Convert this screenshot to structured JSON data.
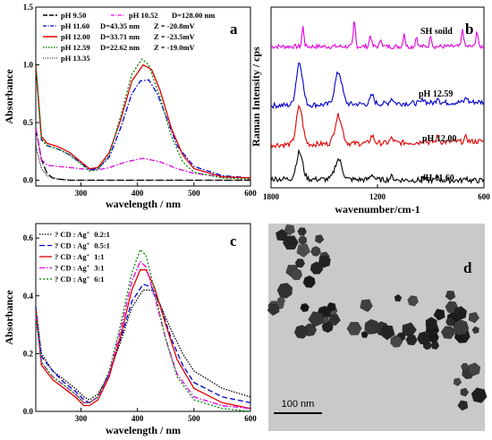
{
  "panels": {
    "a": {
      "label": "a",
      "xlabel": "wavelength / nm",
      "ylabel": "Absorbance",
      "legend": [
        {
          "ph": "pH 9.50",
          "d": "",
          "z": ""
        },
        {
          "ph": "pH 10.52",
          "d": "D=128.00 nm",
          "z": ""
        },
        {
          "ph": "pH 11.60",
          "d": "D=43.35 nm",
          "z": "Z = -20.8mV"
        },
        {
          "ph": "pH 12.00",
          "d": "D=33.71 nm",
          "z": "Z = -23.5mV"
        },
        {
          "ph": "pH 12.59",
          "d": "D=22.62 nm",
          "z": "Z = -19.0mV"
        },
        {
          "ph": "pH 13.35",
          "d": "",
          "z": ""
        }
      ]
    },
    "b": {
      "label": "b",
      "xlabel": "wavenumber/cm-1",
      "ylabel": "Raman Intensity / cps",
      "trace_labels": [
        "SH soild",
        "pH 12.59",
        "pH 12.00",
        "pH 11.60"
      ]
    },
    "c": {
      "label": "c",
      "xlabel": "wavelength / nm",
      "ylabel": "Absorbance",
      "legend": [
        {
          "mark": "?",
          "text": "CD : Ag",
          "sup": "+",
          "ratio": "0.2:1"
        },
        {
          "mark": "?",
          "text": "CD : Ag",
          "sup": "+",
          "ratio": "0.5:1"
        },
        {
          "mark": "?",
          "text": "CD : Ag",
          "sup": "+",
          "ratio": "1:1"
        },
        {
          "mark": "?",
          "text": "CD : Ag",
          "sup": "+",
          "ratio": "3:1"
        },
        {
          "mark": "?",
          "text": "CD : Ag",
          "sup": "+",
          "ratio": "6:1"
        }
      ]
    },
    "d": {
      "label": "d",
      "scalebar": "100 nm"
    }
  },
  "chart_data": [
    {
      "panel": "a",
      "type": "line",
      "xlim": [
        220,
        600
      ],
      "ylim": [
        -0.05,
        1.5
      ],
      "xticks": [
        "300",
        "400",
        "500",
        "600"
      ],
      "yticks": [
        "0.0",
        "0.5",
        "1.0",
        "1.5"
      ],
      "series": [
        {
          "name": "pH 9.50",
          "color": "#000000",
          "dash": "8,3",
          "x": [
            220,
            230,
            240,
            250,
            260,
            280,
            300,
            350,
            400,
            450,
            500,
            550,
            600
          ],
          "y": [
            0.45,
            0.18,
            0.06,
            0.02,
            0.01,
            0.0,
            0.0,
            0.0,
            0.0,
            0.0,
            0.0,
            0.0,
            0.0
          ]
        },
        {
          "name": "pH 10.52",
          "color": "#e000e0",
          "dash": "6,2,1.5,2",
          "x": [
            220,
            230,
            240,
            260,
            280,
            300,
            315,
            330,
            350,
            380,
            410,
            440,
            470,
            500,
            550,
            600
          ],
          "y": [
            0.45,
            0.18,
            0.13,
            0.12,
            0.11,
            0.1,
            0.09,
            0.09,
            0.11,
            0.16,
            0.19,
            0.16,
            0.1,
            0.06,
            0.03,
            0.02
          ]
        },
        {
          "name": "pH 11.60",
          "color": "#0000cc",
          "dash": "6,2,1.5,2",
          "x": [
            220,
            230,
            240,
            260,
            280,
            300,
            315,
            330,
            350,
            370,
            390,
            405,
            420,
            435,
            450,
            470,
            500,
            550,
            600
          ],
          "y": [
            1.0,
            0.35,
            0.3,
            0.27,
            0.22,
            0.15,
            0.09,
            0.1,
            0.2,
            0.45,
            0.75,
            0.86,
            0.87,
            0.75,
            0.56,
            0.3,
            0.12,
            0.04,
            0.02
          ]
        },
        {
          "name": "pH 12.00",
          "color": "#e00000",
          "dash": "",
          "x": [
            220,
            230,
            240,
            260,
            280,
            300,
            315,
            330,
            350,
            370,
            390,
            410,
            425,
            440,
            460,
            480,
            500,
            550,
            600
          ],
          "y": [
            1.0,
            0.38,
            0.32,
            0.29,
            0.24,
            0.16,
            0.1,
            0.11,
            0.24,
            0.52,
            0.86,
            1.0,
            0.96,
            0.78,
            0.45,
            0.22,
            0.1,
            0.03,
            0.02
          ]
        },
        {
          "name": "pH 12.59",
          "color": "#008800",
          "dash": "2,2",
          "x": [
            220,
            230,
            240,
            260,
            280,
            300,
            315,
            330,
            350,
            370,
            390,
            408,
            420,
            440,
            460,
            480,
            500,
            550,
            600
          ],
          "y": [
            1.0,
            0.36,
            0.3,
            0.27,
            0.22,
            0.14,
            0.08,
            0.09,
            0.22,
            0.55,
            0.92,
            1.05,
            1.0,
            0.72,
            0.38,
            0.16,
            0.07,
            0.02,
            0.01
          ]
        },
        {
          "name": "pH 13.35",
          "color": "#000000",
          "dash": "1,1.5",
          "x": [
            220,
            230,
            240,
            250,
            260,
            280,
            300,
            350,
            400,
            450,
            500,
            550,
            600
          ],
          "y": [
            0.3,
            0.1,
            0.04,
            0.02,
            0.01,
            0.0,
            0.0,
            0.0,
            0.0,
            0.0,
            0.0,
            0.0,
            0.0
          ]
        }
      ]
    },
    {
      "panel": "b",
      "type": "line",
      "xlim": [
        1800,
        600
      ],
      "xticks": [
        "1800",
        "1200",
        "600"
      ],
      "series": [
        {
          "name": "SH soild",
          "color": "#e000e0",
          "offset": 3.0
        },
        {
          "name": "pH 12.59",
          "color": "#0000cc",
          "offset": 2.0
        },
        {
          "name": "pH 12.00",
          "color": "#e00000",
          "offset": 1.0
        },
        {
          "name": "pH 11.60",
          "color": "#000000",
          "offset": 0.0
        }
      ]
    },
    {
      "panel": "c",
      "type": "line",
      "xlim": [
        220,
        600
      ],
      "ylim": [
        0.0,
        0.65
      ],
      "xticks": [
        "300",
        "400",
        "500",
        "600"
      ],
      "yticks": [
        "0.0",
        "0.2",
        "0.4",
        "0.6"
      ],
      "series": [
        {
          "name": "CD : Ag+ 0.2:1",
          "color": "#000000",
          "dash": "1.5,1.5",
          "x": [
            220,
            230,
            250,
            270,
            290,
            305,
            315,
            330,
            350,
            370,
            390,
            410,
            425,
            440,
            460,
            480,
            500,
            550,
            600
          ],
          "y": [
            0.36,
            0.2,
            0.14,
            0.11,
            0.08,
            0.05,
            0.04,
            0.06,
            0.13,
            0.24,
            0.36,
            0.42,
            0.42,
            0.37,
            0.28,
            0.2,
            0.14,
            0.08,
            0.05
          ]
        },
        {
          "name": "CD : Ag+ 0.5:1",
          "color": "#0000cc",
          "dash": "6,3",
          "x": [
            220,
            230,
            250,
            270,
            290,
            305,
            315,
            330,
            350,
            370,
            390,
            410,
            425,
            440,
            460,
            480,
            500,
            550,
            600
          ],
          "y": [
            0.36,
            0.19,
            0.14,
            0.1,
            0.07,
            0.04,
            0.03,
            0.05,
            0.13,
            0.25,
            0.38,
            0.44,
            0.43,
            0.37,
            0.25,
            0.16,
            0.1,
            0.05,
            0.03
          ]
        },
        {
          "name": "CD : Ag+ 1:1",
          "color": "#e00000",
          "dash": "",
          "x": [
            220,
            230,
            250,
            270,
            290,
            305,
            315,
            330,
            350,
            370,
            390,
            405,
            415,
            430,
            450,
            470,
            500,
            550,
            600
          ],
          "y": [
            0.35,
            0.16,
            0.11,
            0.08,
            0.05,
            0.02,
            0.02,
            0.04,
            0.12,
            0.26,
            0.42,
            0.49,
            0.49,
            0.43,
            0.3,
            0.18,
            0.08,
            0.03,
            0.01
          ]
        },
        {
          "name": "CD : Ag+ 3:1",
          "color": "#e000e0",
          "dash": "6,2,1.5,2",
          "x": [
            220,
            230,
            250,
            270,
            290,
            305,
            315,
            330,
            350,
            370,
            390,
            405,
            415,
            430,
            450,
            470,
            500,
            550,
            600
          ],
          "y": [
            0.33,
            0.17,
            0.12,
            0.09,
            0.06,
            0.03,
            0.03,
            0.05,
            0.13,
            0.28,
            0.45,
            0.52,
            0.5,
            0.4,
            0.25,
            0.13,
            0.05,
            0.02,
            0.01
          ]
        },
        {
          "name": "CD : Ag+ 6:1",
          "color": "#008800",
          "dash": "2,2",
          "x": [
            220,
            230,
            250,
            270,
            290,
            305,
            315,
            330,
            350,
            370,
            390,
            405,
            415,
            430,
            450,
            470,
            500,
            550,
            600
          ],
          "y": [
            0.34,
            0.17,
            0.12,
            0.09,
            0.06,
            0.03,
            0.03,
            0.05,
            0.14,
            0.3,
            0.48,
            0.56,
            0.54,
            0.42,
            0.25,
            0.12,
            0.04,
            0.01,
            0.0
          ]
        }
      ]
    }
  ]
}
